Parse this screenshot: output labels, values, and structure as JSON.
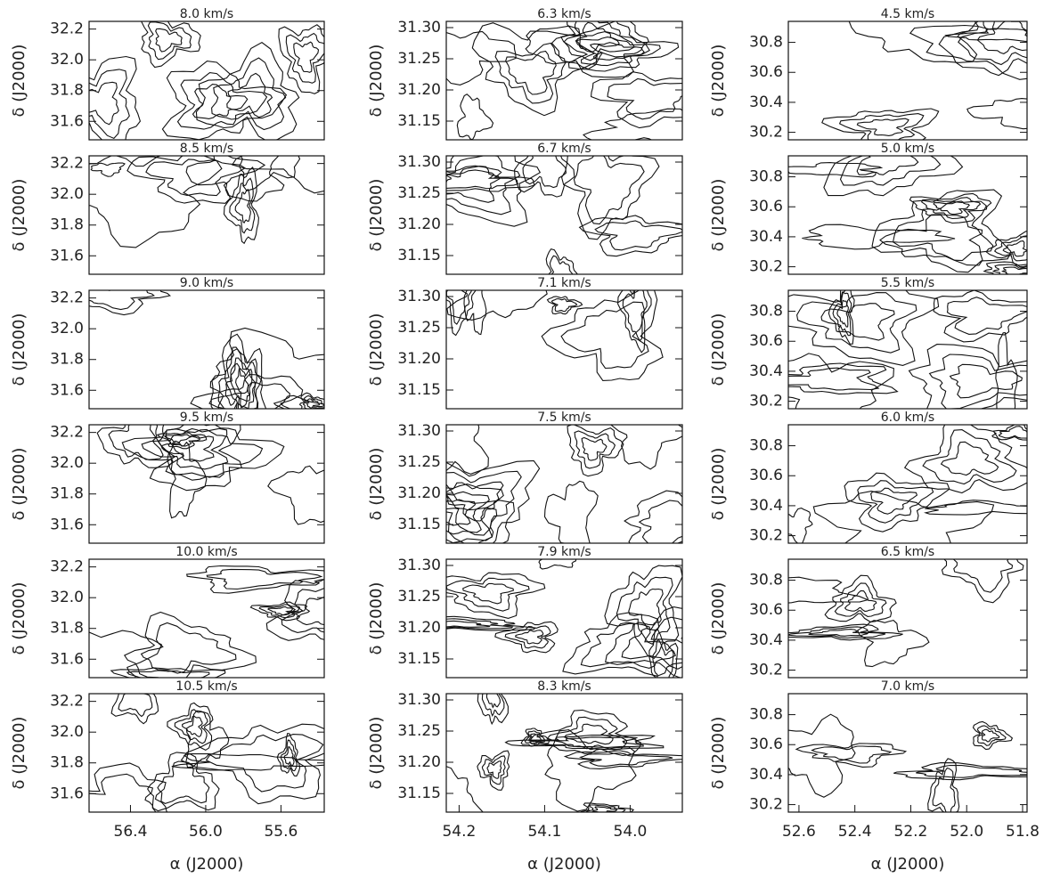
{
  "chart_data": [
    {
      "type": "contour",
      "title": "8.0 km/s",
      "ylabel": "δ (J2000)",
      "xlim": [
        56.62,
        55.37
      ],
      "ylim": [
        31.48,
        32.25
      ],
      "yticks": [
        32.2,
        {
          "value": 32,
          "label": "32.0"
        },
        31.8,
        31.6
      ]
    },
    {
      "type": "contour",
      "title": "6.3 km/s",
      "ylabel": "δ (J2000)",
      "xlim": [
        54.215,
        53.939
      ],
      "ylim": [
        31.12,
        31.31
      ],
      "yticks": [
        {
          "value": 31.3,
          "label": "31.30"
        },
        31.25,
        {
          "value": 31.2,
          "label": "31.20"
        },
        31.15
      ]
    },
    {
      "type": "contour",
      "title": "4.5 km/s",
      "ylabel": "δ (J2000)",
      "xlim": [
        52.638,
        51.784
      ],
      "ylim": [
        30.15,
        30.94
      ],
      "yticks": [
        30.8,
        30.6,
        30.4,
        30.2
      ]
    },
    {
      "type": "contour",
      "title": "8.5 km/s",
      "ylabel": "δ (J2000)",
      "xlim": [
        56.62,
        55.37
      ],
      "ylim": [
        31.48,
        32.25
      ],
      "yticks": [
        32.2,
        {
          "value": 32,
          "label": "32.0"
        },
        31.8,
        31.6
      ]
    },
    {
      "type": "contour",
      "title": "6.7 km/s",
      "ylabel": "δ (J2000)",
      "xlim": [
        54.215,
        53.939
      ],
      "ylim": [
        31.12,
        31.31
      ],
      "yticks": [
        {
          "value": 31.3,
          "label": "31.30"
        },
        31.25,
        {
          "value": 31.2,
          "label": "31.20"
        },
        31.15
      ]
    },
    {
      "type": "contour",
      "title": "5.0 km/s",
      "ylabel": "δ (J2000)",
      "xlim": [
        52.638,
        51.784
      ],
      "ylim": [
        30.15,
        30.94
      ],
      "yticks": [
        30.8,
        30.6,
        30.4,
        30.2
      ]
    },
    {
      "type": "contour",
      "title": "9.0 km/s",
      "ylabel": "δ (J2000)",
      "xlim": [
        56.62,
        55.37
      ],
      "ylim": [
        31.48,
        32.25
      ],
      "yticks": [
        32.2,
        {
          "value": 32,
          "label": "32.0"
        },
        31.8,
        31.6
      ]
    },
    {
      "type": "contour",
      "title": "7.1 km/s",
      "ylabel": "δ (J2000)",
      "xlim": [
        54.215,
        53.939
      ],
      "ylim": [
        31.12,
        31.31
      ],
      "yticks": [
        {
          "value": 31.3,
          "label": "31.30"
        },
        31.25,
        {
          "value": 31.2,
          "label": "31.20"
        },
        31.15
      ]
    },
    {
      "type": "contour",
      "title": "5.5 km/s",
      "ylabel": "δ (J2000)",
      "xlim": [
        52.638,
        51.784
      ],
      "ylim": [
        30.15,
        30.94
      ],
      "yticks": [
        30.8,
        30.6,
        30.4,
        30.2
      ]
    },
    {
      "type": "contour",
      "title": "9.5 km/s",
      "ylabel": "δ (J2000)",
      "xlim": [
        56.62,
        55.37
      ],
      "ylim": [
        31.48,
        32.25
      ],
      "yticks": [
        32.2,
        {
          "value": 32,
          "label": "32.0"
        },
        31.8,
        31.6
      ]
    },
    {
      "type": "contour",
      "title": "7.5 km/s",
      "ylabel": "δ (J2000)",
      "xlim": [
        54.215,
        53.939
      ],
      "ylim": [
        31.12,
        31.31
      ],
      "yticks": [
        {
          "value": 31.3,
          "label": "31.30"
        },
        31.25,
        {
          "value": 31.2,
          "label": "31.20"
        },
        31.15
      ]
    },
    {
      "type": "contour",
      "title": "6.0 km/s",
      "ylabel": "δ (J2000)",
      "xlim": [
        52.638,
        51.784
      ],
      "ylim": [
        30.15,
        30.94
      ],
      "yticks": [
        30.8,
        30.6,
        30.4,
        30.2
      ]
    },
    {
      "type": "contour",
      "title": "10.0 km/s",
      "ylabel": "δ (J2000)",
      "xlim": [
        56.62,
        55.37
      ],
      "ylim": [
        31.48,
        32.25
      ],
      "yticks": [
        32.2,
        {
          "value": 32,
          "label": "32.0"
        },
        31.8,
        31.6
      ]
    },
    {
      "type": "contour",
      "title": "7.9 km/s",
      "ylabel": "δ (J2000)",
      "xlim": [
        54.215,
        53.939
      ],
      "ylim": [
        31.12,
        31.31
      ],
      "yticks": [
        {
          "value": 31.3,
          "label": "31.30"
        },
        31.25,
        {
          "value": 31.2,
          "label": "31.20"
        },
        31.15
      ]
    },
    {
      "type": "contour",
      "title": "6.5 km/s",
      "ylabel": "δ (J2000)",
      "xlim": [
        52.638,
        51.784
      ],
      "ylim": [
        30.15,
        30.94
      ],
      "yticks": [
        30.8,
        30.6,
        30.4,
        30.2
      ]
    },
    {
      "type": "contour",
      "title": "10.5 km/s",
      "ylabel": "δ (J2000)",
      "xlabel": "α (J2000)",
      "xlim": [
        56.62,
        55.37
      ],
      "ylim": [
        31.48,
        32.25
      ],
      "xticks": [
        56.4,
        {
          "value": 56,
          "label": "56.0"
        },
        55.6
      ],
      "yticks": [
        32.2,
        {
          "value": 32,
          "label": "32.0"
        },
        31.8,
        31.6
      ]
    },
    {
      "type": "contour",
      "title": "8.3 km/s",
      "ylabel": "δ (J2000)",
      "xlabel": "α (J2000)",
      "xlim": [
        54.215,
        53.939
      ],
      "ylim": [
        31.12,
        31.31
      ],
      "xticks": [
        54.2,
        54.1,
        {
          "value": 54,
          "label": "54.0"
        }
      ],
      "yticks": [
        {
          "value": 31.3,
          "label": "31.30"
        },
        31.25,
        {
          "value": 31.2,
          "label": "31.20"
        },
        31.15
      ]
    },
    {
      "type": "contour",
      "title": "7.0 km/s",
      "ylabel": "δ (J2000)",
      "xlabel": "α (J2000)",
      "xlim": [
        52.638,
        51.784
      ],
      "ylim": [
        30.15,
        30.94
      ],
      "xticks": [
        52.6,
        52.4,
        52.2,
        {
          "value": 52,
          "label": "52.0"
        },
        51.8
      ],
      "yticks": [
        30.8,
        30.6,
        30.4,
        30.2
      ]
    }
  ]
}
